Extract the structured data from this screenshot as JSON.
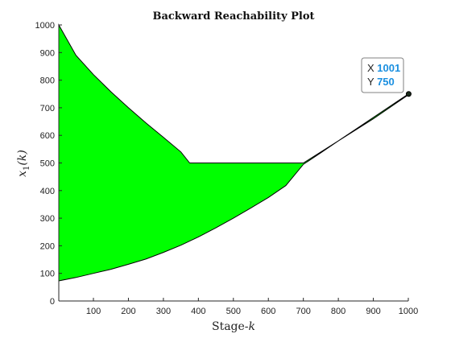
{
  "chart_data": {
    "type": "area",
    "title": "Backward Reachability Plot",
    "xlabel_main": "Stage-",
    "xlabel_var": "k",
    "ylabel_main": "x",
    "ylabel_sub": "1",
    "ylabel_arg": "(k)",
    "xlim": [
      1,
      1000
    ],
    "ylim": [
      0,
      1000
    ],
    "xticks": [
      100,
      200,
      300,
      400,
      500,
      600,
      700,
      800,
      900,
      1000
    ],
    "yticks": [
      0,
      100,
      200,
      300,
      400,
      500,
      600,
      700,
      800,
      900,
      1000
    ],
    "grid": false,
    "fill_color": "#00ff00",
    "edge_color": "#000000",
    "series": [
      {
        "role": "upper_bound",
        "x": [
          1,
          50,
          100,
          150,
          200,
          250,
          300,
          350,
          375,
          400,
          500,
          600,
          700,
          800,
          900,
          1000
        ],
        "y": [
          1000,
          890,
          820,
          758,
          700,
          645,
          593,
          540,
          500,
          500,
          500,
          500,
          500,
          580,
          665,
          750
        ]
      },
      {
        "role": "lower_bound",
        "x": [
          1,
          50,
          100,
          150,
          200,
          250,
          300,
          350,
          400,
          450,
          500,
          550,
          600,
          650,
          700,
          750,
          800,
          900,
          1000
        ],
        "y": [
          73,
          85,
          100,
          115,
          133,
          152,
          176,
          202,
          232,
          265,
          300,
          337,
          375,
          418,
          495,
          537,
          580,
          660,
          747
        ]
      }
    ],
    "datatip": {
      "x_label": "X",
      "x_value": "1001",
      "y_label": "Y",
      "y_value": "750",
      "x": 1001,
      "y": 750
    }
  }
}
